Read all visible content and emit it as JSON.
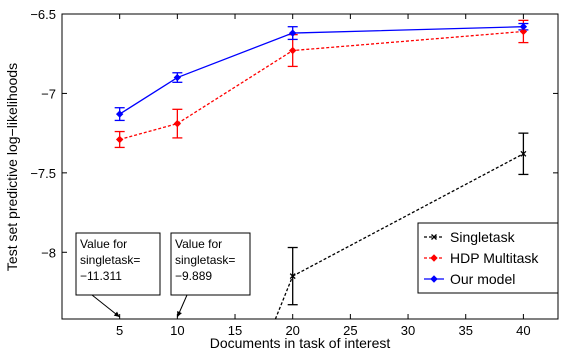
{
  "chart_data": {
    "type": "line",
    "title": "",
    "xlabel": "Documents in task of interest",
    "ylabel": "Test set predictive log−likelihoods",
    "xlim": [
      0,
      43
    ],
    "ylim": [
      -8.42,
      -6.5
    ],
    "xticks": [
      5,
      10,
      15,
      20,
      25,
      30,
      35,
      40
    ],
    "yticks": [
      -8,
      -7.5,
      -7,
      -6.5
    ],
    "ytick_labels": [
      "−8",
      "−7.5",
      "−7",
      "−6.5"
    ],
    "grid": false,
    "legend_position": "bottom-right",
    "series": [
      {
        "name": "Singletask",
        "color": "#000000",
        "line_style": "dotted",
        "marker": "x",
        "x": [
          20,
          40
        ],
        "y": [
          -8.15,
          -7.38
        ],
        "err": [
          0.18,
          0.13
        ],
        "lead_in_from": [
          18.5,
          -8.42
        ]
      },
      {
        "name": "HDP Multitask",
        "color": "#ff0000",
        "line_style": "dotted",
        "marker": "diamond",
        "x": [
          5,
          10,
          20,
          40
        ],
        "y": [
          -7.29,
          -7.19,
          -6.73,
          -6.61
        ],
        "err": [
          0.05,
          0.09,
          0.1,
          0.07
        ]
      },
      {
        "name": "Our model",
        "color": "#0000ff",
        "line_style": "solid",
        "marker": "diamond",
        "x": [
          5,
          10,
          20,
          40
        ],
        "y": [
          -7.13,
          -6.9,
          -6.62,
          -6.58
        ],
        "err": [
          0.04,
          0.03,
          0.04,
          0.02
        ]
      }
    ],
    "annotations": [
      {
        "lines": [
          "Value for",
          "singletask=",
          "−11.311"
        ],
        "points_to_x": 5
      },
      {
        "lines": [
          "Value for",
          "singletask=",
          "−9.889"
        ],
        "points_to_x": 10
      }
    ]
  }
}
